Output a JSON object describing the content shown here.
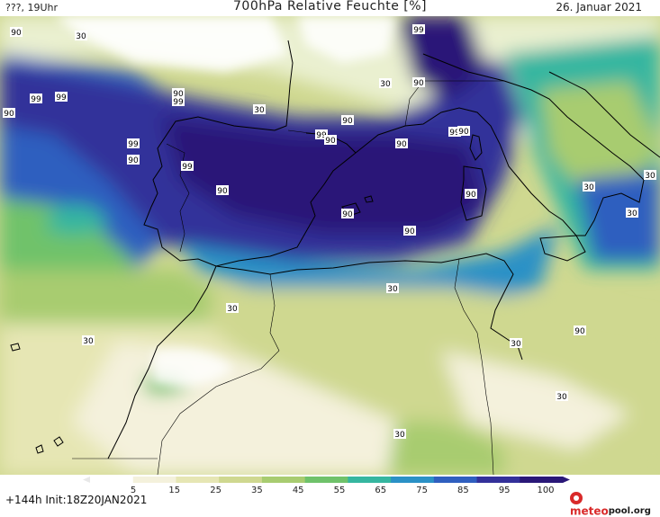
{
  "header": {
    "left": "???, 19Uhr",
    "title": "700hPa Relative Feuchte [%]",
    "date": "26. Januar 2021"
  },
  "footer": {
    "run": "+144h Init:18Z20JAN2021",
    "brand_red": "meteo",
    "brand_dark": "pool.org"
  },
  "colorbar": {
    "labels": [
      "5",
      "15",
      "25",
      "35",
      "45",
      "55",
      "65",
      "75",
      "85",
      "95",
      "100"
    ],
    "colors": [
      "#ffffff",
      "#f4f1dc",
      "#e6e6b4",
      "#cfd890",
      "#a8cc70",
      "#6fc26a",
      "#35b6a0",
      "#2b91c6",
      "#2f5fbf",
      "#33309a",
      "#2a1878"
    ]
  },
  "contour_labels": [
    {
      "text": "90"
    },
    {
      "text": "30"
    },
    {
      "text": "99"
    },
    {
      "text": "90"
    },
    {
      "text": "99"
    },
    {
      "text": "90"
    },
    {
      "text": "99"
    },
    {
      "text": "30"
    },
    {
      "text": "30"
    },
    {
      "text": "99"
    },
    {
      "text": "90"
    },
    {
      "text": "90"
    },
    {
      "text": "99"
    },
    {
      "text": "90"
    },
    {
      "text": "99"
    },
    {
      "text": "90"
    },
    {
      "text": "99"
    },
    {
      "text": "90"
    },
    {
      "text": "99"
    },
    {
      "text": "90"
    },
    {
      "text": "90"
    },
    {
      "text": "90"
    },
    {
      "text": "90"
    },
    {
      "text": "90"
    },
    {
      "text": "30"
    },
    {
      "text": "30"
    },
    {
      "text": "30"
    },
    {
      "text": "90"
    },
    {
      "text": "30"
    },
    {
      "text": "30"
    },
    {
      "text": "30"
    },
    {
      "text": "30"
    },
    {
      "text": "30"
    },
    {
      "text": "30"
    }
  ]
}
